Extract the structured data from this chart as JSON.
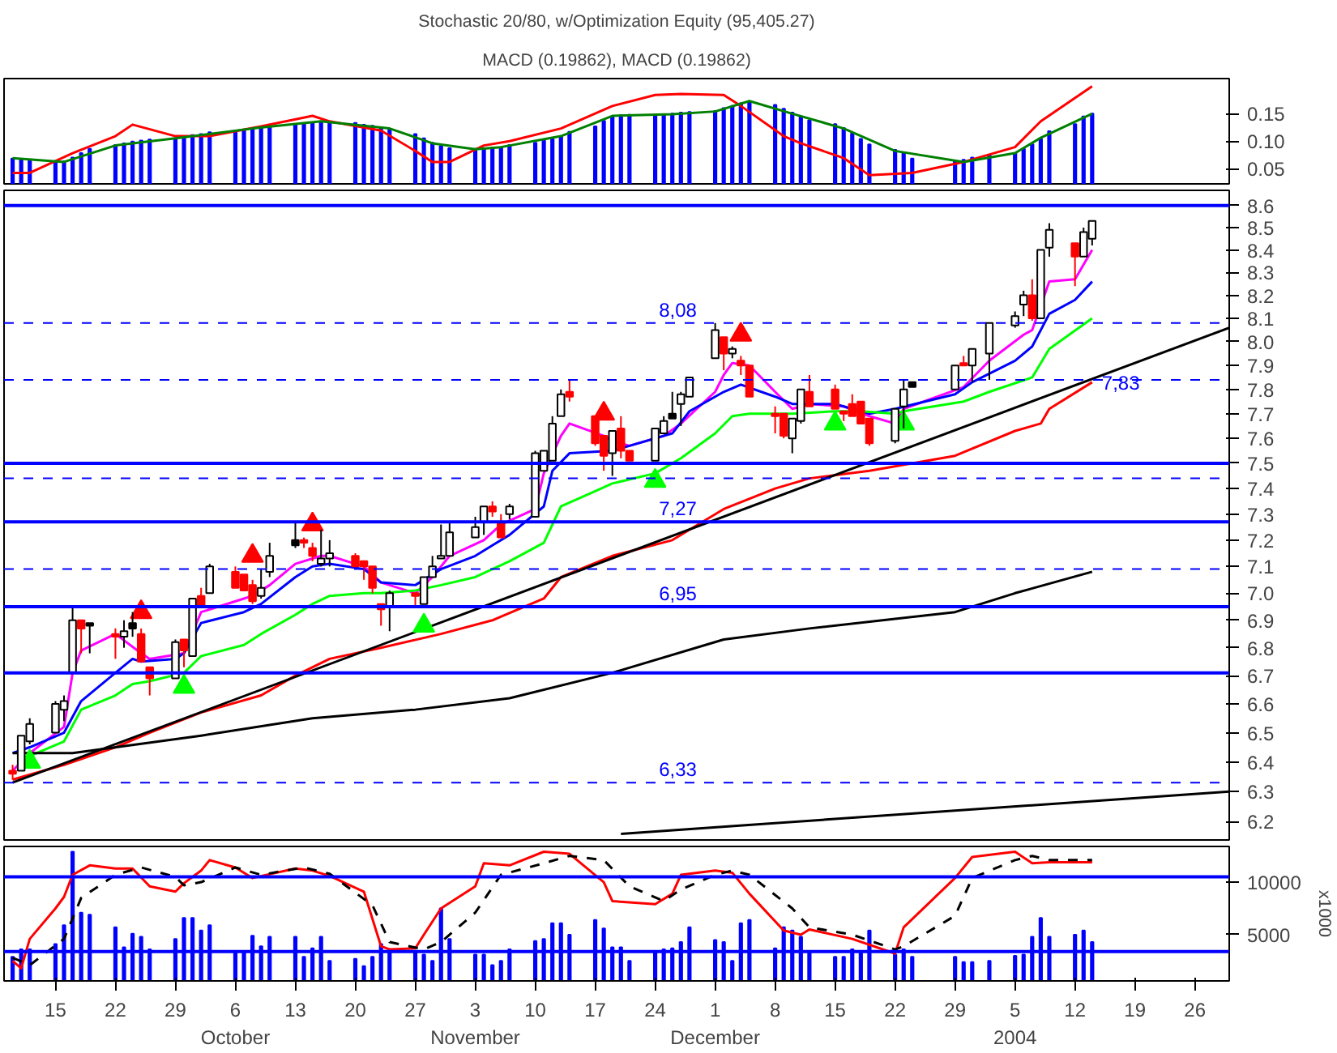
{
  "chart_data": [
    {
      "type": "bar",
      "title": "Stochastic 20/80, w/Optimization Equity (95,405.27)",
      "subtitle": "MACD (0.19862), MACD (0.19862)",
      "xlim": [
        "2003-09-09",
        "2004-01-30"
      ],
      "ylim": [
        0.022,
        0.214
      ],
      "yticks": [
        0.05,
        {
          "value": 0.1,
          "label": "0.10"
        },
        0.15
      ],
      "tick_labels": "y",
      "color": "#0000ff",
      "x": [
        "2003-09-10",
        "2003-09-11",
        "2003-09-12",
        "2003-09-15",
        "2003-09-16",
        "2003-09-17",
        "2003-09-18",
        "2003-09-19",
        "2003-09-22",
        "2003-09-23",
        "2003-09-24",
        "2003-09-25",
        "2003-09-26",
        "2003-09-29",
        "2003-09-30",
        "2003-10-01",
        "2003-10-02",
        "2003-10-03",
        "2003-10-06",
        "2003-10-07",
        "2003-10-08",
        "2003-10-09",
        "2003-10-10",
        "2003-10-13",
        "2003-10-14",
        "2003-10-15",
        "2003-10-16",
        "2003-10-17",
        "2003-10-20",
        "2003-10-21",
        "2003-10-22",
        "2003-10-23",
        "2003-10-24",
        "2003-10-27",
        "2003-10-28",
        "2003-10-29",
        "2003-10-30",
        "2003-10-31",
        "2003-11-03",
        "2003-11-04",
        "2003-11-05",
        "2003-11-06",
        "2003-11-07",
        "2003-11-10",
        "2003-11-11",
        "2003-11-12",
        "2003-11-13",
        "2003-11-14",
        "2003-11-17",
        "2003-11-18",
        "2003-11-19",
        "2003-11-20",
        "2003-11-21",
        "2003-11-24",
        "2003-11-25",
        "2003-11-26",
        "2003-11-27",
        "2003-11-28",
        "2003-12-01",
        "2003-12-02",
        "2003-12-03",
        "2003-12-04",
        "2003-12-05",
        "2003-12-08",
        "2003-12-09",
        "2003-12-10",
        "2003-12-11",
        "2003-12-12",
        "2003-12-15",
        "2003-12-16",
        "2003-12-17",
        "2003-12-18",
        "2003-12-19",
        "2003-12-22",
        "2003-12-23",
        "2003-12-24",
        "2003-12-29",
        "2003-12-30",
        "2003-12-31",
        "2004-01-02",
        "2004-01-05",
        "2004-01-06",
        "2004-01-07",
        "2004-01-08",
        "2004-01-09",
        "2004-01-12",
        "2004-01-13",
        "2004-01-14"
      ],
      "values": [
        0.068,
        0.066,
        0.064,
        0.063,
        0.063,
        0.07,
        0.078,
        0.086,
        0.093,
        0.096,
        0.099,
        0.101,
        0.103,
        0.105,
        0.108,
        0.111,
        0.113,
        0.116,
        0.119,
        0.121,
        0.124,
        0.126,
        0.128,
        0.13,
        0.132,
        0.134,
        0.136,
        0.135,
        0.133,
        0.13,
        0.128,
        0.125,
        0.121,
        0.113,
        0.105,
        0.097,
        0.091,
        0.087,
        0.086,
        0.087,
        0.088,
        0.089,
        0.093,
        0.097,
        0.101,
        0.104,
        0.108,
        0.117,
        0.127,
        0.137,
        0.145,
        0.147,
        0.148,
        0.148,
        0.149,
        0.15,
        0.152,
        0.153,
        0.155,
        0.16,
        0.164,
        0.169,
        0.172,
        0.166,
        0.159,
        0.152,
        0.145,
        0.138,
        0.131,
        0.124,
        0.114,
        0.104,
        0.094,
        0.084,
        0.078,
        0.068,
        0.063,
        0.066,
        0.07,
        0.075,
        0.078,
        0.086,
        0.094,
        0.104,
        0.118,
        0.131,
        0.145,
        0.15
      ],
      "series": [
        {
          "type": "line",
          "color": "#ff0000",
          "x": [
            "2003-09-10",
            "2003-09-12",
            "2003-09-17",
            "2003-09-22",
            "2003-09-24",
            "2003-09-29",
            "2003-10-03",
            "2003-10-09",
            "2003-10-15",
            "2003-10-17",
            "2003-10-23",
            "2003-10-27",
            "2003-10-29",
            "2003-10-31",
            "2003-11-04",
            "2003-11-07",
            "2003-11-13",
            "2003-11-19",
            "2003-11-24",
            "2003-11-27",
            "2003-12-02",
            "2003-12-04",
            "2003-12-09",
            "2003-12-11",
            "2003-12-16",
            "2003-12-19",
            "2003-12-24",
            "2003-12-30",
            "2004-01-05",
            "2004-01-08",
            "2004-01-14"
          ],
          "values": [
            0.042,
            0.042,
            0.078,
            0.109,
            0.13,
            0.109,
            0.109,
            0.127,
            0.146,
            0.136,
            0.119,
            0.082,
            0.062,
            0.062,
            0.092,
            0.1,
            0.123,
            0.164,
            0.184,
            0.186,
            0.184,
            0.164,
            0.109,
            0.096,
            0.069,
            0.038,
            0.042,
            0.062,
            0.089,
            0.136,
            0.2
          ]
        },
        {
          "type": "line",
          "color": "#008000",
          "x": [
            "2003-09-10",
            "2003-09-16",
            "2003-09-22",
            "2003-09-29",
            "2003-10-08",
            "2003-10-16",
            "2003-10-24",
            "2003-10-29",
            "2003-11-03",
            "2003-11-06",
            "2003-11-13",
            "2003-11-19",
            "2003-11-26",
            "2003-12-01",
            "2003-12-05",
            "2003-12-10",
            "2003-12-16",
            "2003-12-22",
            "2003-12-30",
            "2004-01-05",
            "2004-01-08",
            "2004-01-14"
          ],
          "values": [
            0.069,
            0.062,
            0.092,
            0.105,
            0.123,
            0.136,
            0.123,
            0.096,
            0.085,
            0.089,
            0.109,
            0.146,
            0.149,
            0.154,
            0.173,
            0.15,
            0.123,
            0.082,
            0.062,
            0.078,
            0.106,
            0.15
          ]
        }
      ]
    },
    {
      "type": "candlestick",
      "log": "y",
      "xlim": [
        "2003-09-09",
        "2004-01-30"
      ],
      "ylim": [
        6.14,
        8.67
      ],
      "tick_labels": "y",
      "yticks": [
        6.2,
        6.3,
        6.4,
        6.5,
        6.6,
        6.7,
        6.8,
        6.9,
        {
          "value": 7.0,
          "label": "7.0"
        },
        7.1,
        7.2,
        7.3,
        7.4,
        7.5,
        7.6,
        7.7,
        7.8,
        7.9,
        {
          "value": 8.0,
          "label": "8.0"
        },
        8.1,
        8.2,
        8.3,
        8.4,
        8.5,
        8.6
      ],
      "x": [
        "2003-09-10",
        "2003-09-11",
        "2003-09-12",
        "2003-09-15",
        "2003-09-16",
        "2003-09-17",
        "2003-09-18",
        "2003-09-19",
        "2003-09-22",
        "2003-09-23",
        "2003-09-24",
        "2003-09-25",
        "2003-09-26",
        "2003-09-29",
        "2003-09-30",
        "2003-10-01",
        "2003-10-02",
        "2003-10-03",
        "2003-10-06",
        "2003-10-07",
        "2003-10-08",
        "2003-10-09",
        "2003-10-10",
        "2003-10-13",
        "2003-10-14",
        "2003-10-15",
        "2003-10-16",
        "2003-10-17",
        "2003-10-20",
        "2003-10-21",
        "2003-10-22",
        "2003-10-23",
        "2003-10-24",
        "2003-10-27",
        "2003-10-28",
        "2003-10-29",
        "2003-10-30",
        "2003-10-31",
        "2003-11-03",
        "2003-11-04",
        "2003-11-05",
        "2003-11-06",
        "2003-11-07",
        "2003-11-10",
        "2003-11-11",
        "2003-11-12",
        "2003-11-13",
        "2003-11-14",
        "2003-11-17",
        "2003-11-18",
        "2003-11-19",
        "2003-11-20",
        "2003-11-21",
        "2003-11-24",
        "2003-11-25",
        "2003-11-26",
        "2003-11-27",
        "2003-11-28",
        "2003-12-01",
        "2003-12-02",
        "2003-12-03",
        "2003-12-04",
        "2003-12-05",
        "2003-12-08",
        "2003-12-09",
        "2003-12-10",
        "2003-12-11",
        "2003-12-12",
        "2003-12-15",
        "2003-12-16",
        "2003-12-17",
        "2003-12-18",
        "2003-12-19",
        "2003-12-22",
        "2003-12-23",
        "2003-12-24",
        "2003-12-29",
        "2003-12-30",
        "2003-12-31",
        "2004-01-02",
        "2004-01-05",
        "2004-01-06",
        "2004-01-07",
        "2004-01-08",
        "2004-01-09",
        "2004-01-12",
        "2004-01-13",
        "2004-01-14"
      ],
      "ohlc": [
        [
          6.37,
          6.39,
          6.34,
          6.36
        ],
        [
          6.37,
          6.49,
          6.37,
          6.49
        ],
        [
          6.47,
          6.55,
          6.46,
          6.53
        ],
        [
          6.5,
          6.61,
          6.5,
          6.6
        ],
        [
          6.58,
          6.63,
          6.54,
          6.61
        ],
        [
          6.71,
          6.95,
          6.71,
          6.9
        ],
        [
          6.9,
          6.9,
          6.78,
          6.87
        ],
        [
          6.89,
          6.89,
          6.78,
          6.88
        ],
        [
          6.85,
          6.87,
          6.76,
          6.84
        ],
        [
          6.84,
          6.9,
          6.8,
          6.86
        ],
        [
          6.89,
          6.93,
          6.84,
          6.87
        ],
        [
          6.85,
          6.87,
          6.75,
          6.75
        ],
        [
          6.73,
          6.73,
          6.63,
          6.69
        ],
        [
          6.69,
          6.83,
          6.69,
          6.82
        ],
        [
          6.83,
          6.83,
          6.73,
          6.79
        ],
        [
          6.77,
          6.98,
          6.77,
          6.98
        ],
        [
          6.99,
          7.02,
          6.95,
          6.95
        ],
        [
          7.0,
          7.11,
          7.0,
          7.1
        ],
        [
          7.08,
          7.1,
          7.02,
          7.02
        ],
        [
          7.07,
          7.07,
          7.01,
          7.01
        ],
        [
          7.03,
          7.05,
          6.96,
          6.97
        ],
        [
          6.99,
          7.09,
          6.98,
          7.02
        ],
        [
          7.08,
          7.19,
          7.06,
          7.14
        ],
        [
          7.2,
          7.27,
          7.17,
          7.18
        ],
        [
          7.2,
          7.21,
          7.17,
          7.19
        ],
        [
          7.17,
          7.19,
          7.12,
          7.14
        ],
        [
          7.11,
          7.24,
          7.1,
          7.13
        ],
        [
          7.13,
          7.2,
          7.1,
          7.15
        ],
        [
          7.14,
          7.15,
          7.1,
          7.1
        ],
        [
          7.12,
          7.12,
          7.05,
          7.1
        ],
        [
          7.1,
          7.1,
          7.0,
          7.02
        ],
        [
          6.96,
          6.96,
          6.88,
          6.94
        ],
        [
          6.95,
          7.01,
          6.86,
          7.0
        ],
        [
          7.0,
          7.0,
          6.95,
          6.99
        ],
        [
          6.96,
          7.06,
          6.96,
          7.06
        ],
        [
          7.06,
          7.14,
          7.06,
          7.1
        ],
        [
          7.13,
          7.26,
          7.13,
          7.14
        ],
        [
          7.14,
          7.27,
          7.14,
          7.23
        ],
        [
          7.21,
          7.29,
          7.21,
          7.25
        ],
        [
          7.27,
          7.33,
          7.22,
          7.33
        ],
        [
          7.33,
          7.35,
          7.29,
          7.31
        ],
        [
          7.27,
          7.3,
          7.21,
          7.21
        ],
        [
          7.3,
          7.34,
          7.28,
          7.33
        ],
        [
          7.29,
          7.55,
          7.29,
          7.54
        ],
        [
          7.47,
          7.55,
          7.47,
          7.55
        ],
        [
          7.51,
          7.69,
          7.51,
          7.66
        ],
        [
          7.69,
          7.8,
          7.69,
          7.78
        ],
        [
          7.79,
          7.84,
          7.75,
          7.77
        ],
        [
          7.69,
          7.69,
          7.57,
          7.58
        ],
        [
          7.61,
          7.61,
          7.47,
          7.53
        ],
        [
          7.54,
          7.63,
          7.45,
          7.63
        ],
        [
          7.64,
          7.69,
          7.52,
          7.55
        ],
        [
          7.55,
          7.55,
          7.51,
          7.51
        ],
        [
          7.51,
          7.64,
          7.51,
          7.64
        ],
        [
          7.62,
          7.69,
          7.62,
          7.67
        ],
        [
          7.7,
          7.79,
          7.68,
          7.68
        ],
        [
          7.74,
          7.79,
          7.65,
          7.78
        ],
        [
          7.77,
          7.85,
          7.77,
          7.85
        ],
        [
          7.93,
          8.08,
          7.93,
          8.05
        ],
        [
          8.02,
          8.02,
          7.88,
          7.95
        ],
        [
          7.95,
          7.98,
          7.93,
          7.97
        ],
        [
          7.92,
          7.94,
          7.86,
          7.9
        ],
        [
          7.9,
          7.9,
          7.77,
          7.77
        ],
        [
          7.7,
          7.73,
          7.62,
          7.69
        ],
        [
          7.7,
          7.7,
          7.6,
          7.61
        ],
        [
          7.6,
          7.68,
          7.54,
          7.68
        ],
        [
          7.67,
          7.8,
          7.66,
          7.8
        ],
        [
          7.79,
          7.86,
          7.73,
          7.73
        ],
        [
          7.8,
          7.82,
          7.72,
          7.72
        ],
        [
          7.71,
          7.71,
          7.67,
          7.7
        ],
        [
          7.74,
          7.78,
          7.69,
          7.69
        ],
        [
          7.75,
          7.75,
          7.66,
          7.66
        ],
        [
          7.68,
          7.68,
          7.57,
          7.58
        ],
        [
          7.59,
          7.72,
          7.58,
          7.72
        ],
        [
          7.73,
          7.84,
          7.64,
          7.8
        ],
        [
          7.83,
          7.83,
          7.81,
          7.81
        ],
        [
          7.8,
          7.9,
          7.8,
          7.9
        ],
        [
          7.91,
          7.94,
          7.9,
          7.9
        ],
        [
          7.9,
          7.97,
          7.83,
          7.97
        ],
        [
          7.95,
          8.08,
          7.84,
          8.08
        ],
        [
          8.07,
          8.13,
          8.06,
          8.11
        ],
        [
          8.16,
          8.22,
          8.11,
          8.2
        ],
        [
          8.2,
          8.27,
          8.09,
          8.1
        ],
        [
          8.1,
          8.4,
          8.1,
          8.4
        ],
        [
          8.41,
          8.52,
          8.37,
          8.49
        ],
        [
          8.43,
          8.43,
          8.24,
          8.37
        ],
        [
          8.37,
          8.5,
          8.37,
          8.48
        ],
        [
          8.45,
          8.53,
          8.42,
          8.53
        ]
      ],
      "colors": [
        "#ff0000",
        "#ffffff",
        "#ffffff",
        "#ffffff",
        "#ffffff",
        "#ffffff",
        "#ff0000",
        "#000000",
        "#ff0000",
        "#ffffff",
        "#000000",
        "#ff0000",
        "#ff0000",
        "#ffffff",
        "#ff0000",
        "#ffffff",
        "#ff0000",
        "#ffffff",
        "#ff0000",
        "#ff0000",
        "#ff0000",
        "#ffffff",
        "#ffffff",
        "#000000",
        "#ff0000",
        "#ff0000",
        "#ffffff",
        "#ffffff",
        "#ff0000",
        "#ff0000",
        "#ff0000",
        "#ff0000",
        "#ffffff",
        "#ff0000",
        "#ffffff",
        "#ffffff",
        "#ffffff",
        "#ffffff",
        "#ffffff",
        "#ffffff",
        "#ff0000",
        "#ff0000",
        "#ffffff",
        "#ffffff",
        "#ffffff",
        "#ffffff",
        "#ffffff",
        "#ff0000",
        "#ff0000",
        "#ff0000",
        "#ffffff",
        "#ff0000",
        "#ff0000",
        "#ffffff",
        "#ffffff",
        "#000000",
        "#ffffff",
        "#ffffff",
        "#ffffff",
        "#ff0000",
        "#ffffff",
        "#ff0000",
        "#ff0000",
        "#ff0000",
        "#ff0000",
        "#ffffff",
        "#ffffff",
        "#ff0000",
        "#ff0000",
        "#ff0000",
        "#ff0000",
        "#ff0000",
        "#ff0000",
        "#ffffff",
        "#ffffff",
        "#000000",
        "#ffffff",
        "#ff0000",
        "#ffffff",
        "#ffffff",
        "#ffffff",
        "#ffffff",
        "#ff0000",
        "#ffffff",
        "#ffffff",
        "#ff0000",
        "#ffffff",
        "#ffffff"
      ],
      "series": [
        {
          "type": "line",
          "color": "#ff00ff",
          "x": [
            "2003-09-10",
            "2003-09-12",
            "2003-09-16",
            "2003-09-17",
            "2003-09-18",
            "2003-09-22",
            "2003-09-25",
            "2003-09-26",
            "2003-09-30",
            "2003-10-01",
            "2003-10-02",
            "2003-10-07",
            "2003-10-08",
            "2003-10-10",
            "2003-10-13",
            "2003-10-16",
            "2003-10-17",
            "2003-10-21",
            "2003-10-23",
            "2003-10-27",
            "2003-10-29",
            "2003-10-31",
            "2003-11-04",
            "2003-11-06",
            "2003-11-10",
            "2003-11-11",
            "2003-11-13",
            "2003-11-14",
            "2003-11-18",
            "2003-11-19",
            "2003-11-21",
            "2003-11-25",
            "2003-11-27",
            "2003-12-01",
            "2003-12-02",
            "2003-12-03",
            "2003-12-05",
            "2003-12-08",
            "2003-12-10",
            "2003-12-12",
            "2003-12-16",
            "2003-12-19",
            "2003-12-22",
            "2003-12-23",
            "2003-12-30",
            "2004-01-02",
            "2004-01-06",
            "2004-01-07",
            "2004-01-09",
            "2004-01-12",
            "2004-01-14"
          ],
          "values": [
            6.37,
            6.43,
            6.52,
            6.71,
            6.79,
            6.85,
            6.78,
            6.76,
            6.78,
            null,
            6.93,
            6.98,
            6.99,
            7.03,
            7.11,
            7.14,
            7.14,
            7.1,
            7.04,
            7.0,
            7.06,
            7.14,
            7.2,
            7.26,
            7.32,
            7.46,
            7.61,
            7.66,
            7.61,
            7.59,
            7.57,
            7.61,
            7.66,
            7.79,
            7.86,
            7.91,
            7.9,
            7.79,
            7.72,
            7.74,
            7.73,
            7.69,
            7.66,
            7.72,
            7.81,
            7.92,
            8.03,
            8.05,
            8.26,
            8.27,
            8.4
          ]
        },
        {
          "type": "line",
          "color": "#0000ff",
          "x": [
            "2003-09-10",
            "2003-09-12",
            "2003-09-16",
            "2003-09-18",
            "2003-09-22",
            "2003-09-24",
            "2003-09-25",
            "2003-09-29",
            "2003-09-30",
            "2003-10-02",
            "2003-10-07",
            "2003-10-09",
            "2003-10-13",
            "2003-10-15",
            "2003-10-17",
            "2003-10-21",
            "2003-10-23",
            "2003-10-27",
            "2003-10-30",
            "2003-11-03",
            "2003-11-05",
            "2003-11-07",
            "2003-11-11",
            "2003-11-12",
            "2003-11-14",
            "2003-11-19",
            "2003-11-21",
            "2003-11-26",
            "2003-11-28",
            "2003-12-02",
            "2003-12-04",
            "2003-12-08",
            "2003-12-10",
            "2003-12-15",
            "2003-12-19",
            "2003-12-22",
            "2003-12-29",
            "2003-12-31",
            "2004-01-05",
            "2004-01-07",
            "2004-01-09",
            "2004-01-12",
            "2004-01-14"
          ],
          "values": [
            6.43,
            6.45,
            6.5,
            6.61,
            6.71,
            6.76,
            6.75,
            6.76,
            6.78,
            6.89,
            6.93,
            6.96,
            7.06,
            7.1,
            7.11,
            7.09,
            7.04,
            7.03,
            7.09,
            7.14,
            7.18,
            7.22,
            7.33,
            7.47,
            7.54,
            7.55,
            7.57,
            7.62,
            7.71,
            7.79,
            7.82,
            7.77,
            7.74,
            7.74,
            7.7,
            7.72,
            7.78,
            7.83,
            7.92,
            7.98,
            8.12,
            8.18,
            8.26
          ]
        },
        {
          "type": "line",
          "color": "#00ff00",
          "x": [
            "2003-09-12",
            "2003-09-16",
            "2003-09-18",
            "2003-09-22",
            "2003-09-24",
            "2003-09-26",
            "2003-09-30",
            "2003-10-02",
            "2003-10-07",
            "2003-10-09",
            "2003-10-13",
            "2003-10-15",
            "2003-10-17",
            "2003-10-21",
            "2003-10-23",
            "2003-10-27",
            "2003-10-30",
            "2003-11-03",
            "2003-11-05",
            "2003-11-07",
            "2003-11-11",
            "2003-11-13",
            "2003-11-17",
            "2003-11-19",
            "2003-11-24",
            "2003-11-27",
            "2003-12-01",
            "2003-12-03",
            "2003-12-05",
            "2003-12-10",
            "2003-12-15",
            "2003-12-18",
            "2003-12-22",
            "2003-12-23",
            "2003-12-30",
            "2004-01-02",
            "2004-01-07",
            "2004-01-09",
            "2004-01-14"
          ],
          "values": [
            6.42,
            6.47,
            6.58,
            6.63,
            6.67,
            6.68,
            6.71,
            6.77,
            6.81,
            6.85,
            6.92,
            6.96,
            6.99,
            7.0,
            7.0,
            7.01,
            7.03,
            7.06,
            7.09,
            7.12,
            7.19,
            7.33,
            7.39,
            7.42,
            7.46,
            7.52,
            7.62,
            7.69,
            7.7,
            7.7,
            7.71,
            7.71,
            7.7,
            7.71,
            7.75,
            7.79,
            7.85,
            7.97,
            8.1
          ]
        },
        {
          "type": "line",
          "color": "#ff0000",
          "x": [
            "2003-09-10",
            "2003-09-16",
            "2003-09-22",
            "2003-09-26",
            "2003-10-02",
            "2003-10-09",
            "2003-10-13",
            "2003-10-17",
            "2003-10-23",
            "2003-10-30",
            "2003-11-05",
            "2003-11-11",
            "2003-11-13",
            "2003-11-19",
            "2003-11-26",
            "2003-12-02",
            "2003-12-08",
            "2003-12-12",
            "2003-12-19",
            "2003-12-29",
            "2004-01-05",
            "2004-01-08",
            "2004-01-09",
            "2004-01-14"
          ],
          "values": [
            6.34,
            6.39,
            6.45,
            6.5,
            6.57,
            6.63,
            6.7,
            6.76,
            6.8,
            6.85,
            6.9,
            6.98,
            7.06,
            7.14,
            7.2,
            7.32,
            7.4,
            7.44,
            7.47,
            7.53,
            7.63,
            7.66,
            7.72,
            7.83
          ]
        },
        {
          "type": "line",
          "color": "#000000",
          "x": [
            "2003-09-10",
            "2003-09-17",
            "2003-10-02",
            "2003-10-15",
            "2003-10-27",
            "2003-11-07",
            "2003-11-19",
            "2003-12-02",
            "2003-12-12",
            "2003-12-29",
            "2004-01-05",
            "2004-01-14"
          ],
          "values": [
            6.43,
            6.43,
            6.49,
            6.55,
            6.58,
            6.62,
            6.71,
            6.83,
            6.87,
            6.93,
            7.0,
            7.08
          ]
        },
        {
          "type": "line",
          "color": "#000000",
          "x": [
            "2003-09-10",
            "2004-01-30"
          ],
          "values": [
            6.33,
            8.06
          ]
        },
        {
          "type": "line",
          "color": "#000000",
          "x": [
            "2003-11-20",
            "2004-01-30"
          ],
          "values": [
            6.16,
            6.3
          ]
        },
        {
          "type": "scatter",
          "marker": "triangle",
          "color": "#00ff00",
          "x": [
            "2003-09-12",
            "2003-09-30",
            "2003-10-28",
            "2003-11-24",
            "2003-12-15",
            "2003-12-23"
          ],
          "values": [
            6.4,
            6.66,
            6.88,
            7.43,
            7.66,
            7.66
          ]
        },
        {
          "type": "scatter",
          "marker": "triangle",
          "color": "#ff0000",
          "x": [
            "2003-09-25",
            "2003-10-08",
            "2003-10-15",
            "2003-11-18",
            "2003-12-04"
          ],
          "values": [
            6.93,
            7.14,
            7.26,
            7.7,
            8.03
          ]
        }
      ],
      "ref_lines": [
        {
          "axis": "y",
          "value": 8.6,
          "color": "#0000ff"
        },
        {
          "axis": "y",
          "value": 7.27,
          "color": "#0000ff",
          "label": "7,27"
        },
        {
          "axis": "y",
          "value": 6.95,
          "color": "#0000ff",
          "label": "6,95"
        },
        {
          "axis": "y",
          "value": 6.71,
          "color": "#0000ff"
        },
        {
          "axis": "y",
          "value": 7.5,
          "color": "#0000ff"
        },
        {
          "axis": "y",
          "value": 8.08,
          "color": "#0000ff",
          "line_style": "dashed",
          "label": "8,08"
        },
        {
          "axis": "y",
          "value": 7.84,
          "color": "#0000ff",
          "line_style": "dashed"
        },
        {
          "axis": "y",
          "value": 7.44,
          "color": "#0000ff",
          "line_style": "dashed"
        },
        {
          "axis": "y",
          "value": 7.09,
          "color": "#0000ff",
          "line_style": "dashed"
        },
        {
          "axis": "y",
          "value": 6.33,
          "color": "#0000ff",
          "line_style": "dashed",
          "label": "6,33"
        }
      ],
      "annotations": [
        {
          "text": "7,83",
          "x": "2004-01-14",
          "y": 7.83
        }
      ]
    },
    {
      "type": "bar",
      "ylabel": "x1000",
      "color": "#0000ff",
      "xlim": [
        "2003-09-09",
        "2004-01-30"
      ],
      "ylim": [
        600,
        13400
      ],
      "yticks": [
        5000,
        10000
      ],
      "xticks": [
        {
          "value": "2003-09-15",
          "label": "15"
        },
        {
          "value": "2003-09-22",
          "label": "22"
        },
        {
          "value": "2003-09-29",
          "label": "29"
        },
        {
          "value": "2003-10-06",
          "label": "6\nOctober"
        },
        {
          "value": "2003-10-13",
          "label": "13"
        },
        {
          "value": "2003-10-20",
          "label": "20"
        },
        {
          "value": "2003-10-27",
          "label": "27"
        },
        {
          "value": "2003-11-03",
          "label": "3\nNovember"
        },
        {
          "value": "2003-11-10",
          "label": "10"
        },
        {
          "value": "2003-11-17",
          "label": "17"
        },
        {
          "value": "2003-11-24",
          "label": "24"
        },
        {
          "value": "2003-12-01",
          "label": "1\nDecember"
        },
        {
          "value": "2003-12-08",
          "label": "8"
        },
        {
          "value": "2003-12-15",
          "label": "15"
        },
        {
          "value": "2003-12-22",
          "label": "22"
        },
        {
          "value": "2003-12-29",
          "label": "29"
        },
        {
          "value": "2004-01-05",
          "label": "5\n2004"
        },
        {
          "value": "2004-01-12",
          "label": "12"
        },
        {
          "value": "2004-01-19",
          "label": "19"
        },
        {
          "value": "2004-01-26",
          "label": "26"
        }
      ],
      "x": [
        "2003-09-10",
        "2003-09-11",
        "2003-09-12",
        "2003-09-15",
        "2003-09-16",
        "2003-09-17",
        "2003-09-18",
        "2003-09-19",
        "2003-09-22",
        "2003-09-23",
        "2003-09-24",
        "2003-09-25",
        "2003-09-26",
        "2003-09-29",
        "2003-09-30",
        "2003-10-01",
        "2003-10-02",
        "2003-10-03",
        "2003-10-06",
        "2003-10-07",
        "2003-10-08",
        "2003-10-09",
        "2003-10-10",
        "2003-10-13",
        "2003-10-14",
        "2003-10-15",
        "2003-10-16",
        "2003-10-17",
        "2003-10-20",
        "2003-10-21",
        "2003-10-22",
        "2003-10-23",
        "2003-10-24",
        "2003-10-27",
        "2003-10-28",
        "2003-10-29",
        "2003-10-30",
        "2003-10-31",
        "2003-11-03",
        "2003-11-04",
        "2003-11-05",
        "2003-11-06",
        "2003-11-07",
        "2003-11-10",
        "2003-11-11",
        "2003-11-12",
        "2003-11-13",
        "2003-11-14",
        "2003-11-17",
        "2003-11-18",
        "2003-11-19",
        "2003-11-20",
        "2003-11-21",
        "2003-11-24",
        "2003-11-25",
        "2003-11-26",
        "2003-11-27",
        "2003-11-28",
        "2003-12-01",
        "2003-12-02",
        "2003-12-03",
        "2003-12-04",
        "2003-12-05",
        "2003-12-08",
        "2003-12-09",
        "2003-12-10",
        "2003-12-11",
        "2003-12-12",
        "2003-12-15",
        "2003-12-16",
        "2003-12-17",
        "2003-12-18",
        "2003-12-19",
        "2003-12-22",
        "2003-12-23",
        "2003-12-24",
        "2003-12-29",
        "2003-12-30",
        "2003-12-31",
        "2004-01-02",
        "2004-01-05",
        "2004-01-06",
        "2004-01-07",
        "2004-01-08",
        "2004-01-09",
        "2004-01-12",
        "2004-01-13",
        "2004-01-14"
      ],
      "values": [
        2900,
        3600,
        3600,
        4100,
        5900,
        12900,
        7100,
        6900,
        5700,
        3800,
        5100,
        4800,
        3600,
        4600,
        6600,
        6600,
        5400,
        5900,
        3400,
        3400,
        4900,
        3900,
        4800,
        4800,
        2900,
        3700,
        4800,
        2500,
        2700,
        2000,
        2900,
        4100,
        3400,
        3400,
        3100,
        2500,
        7500,
        4600,
        3100,
        3100,
        2100,
        2500,
        3600,
        4400,
        4600,
        6100,
        6100,
        5000,
        6400,
        5600,
        3800,
        3800,
        2500,
        3400,
        3600,
        3700,
        4300,
        5700,
        4500,
        4300,
        2500,
        6100,
        6400,
        3700,
        5700,
        5400,
        4800,
        3400,
        2900,
        2900,
        3600,
        3400,
        5400,
        3100,
        3600,
        2900,
        2900,
        2400,
        2400,
        2500,
        3000,
        3100,
        4800,
        6600,
        4800,
        5000,
        5400,
        4300
      ],
      "series": [
        {
          "type": "line",
          "color": "#ff0000",
          "x": [
            "2003-09-10",
            "2003-09-11",
            "2003-09-12",
            "2003-09-15",
            "2003-09-16",
            "2003-09-17",
            "2003-09-19",
            "2003-09-22",
            "2003-09-24",
            "2003-09-26",
            "2003-09-29",
            "2003-09-30",
            "2003-10-02",
            "2003-10-03",
            "2003-10-06",
            "2003-10-08",
            "2003-10-13",
            "2003-10-15",
            "2003-10-17",
            "2003-10-21",
            "2003-10-23",
            "2003-10-24",
            "2003-10-27",
            "2003-10-28",
            "2003-10-30",
            "2003-11-03",
            "2003-11-04",
            "2003-11-07",
            "2003-11-11",
            "2003-11-14",
            "2003-11-18",
            "2003-11-19",
            "2003-11-24",
            "2003-11-26",
            "2003-11-27",
            "2003-12-01",
            "2003-12-03",
            "2003-12-05",
            "2003-12-09",
            "2003-12-11",
            "2003-12-12",
            "2003-12-17",
            "2003-12-22",
            "2003-12-23",
            "2003-12-29",
            "2003-12-31",
            "2004-01-05",
            "2004-01-07",
            "2004-01-09",
            "2004-01-14"
          ],
          "values": [
            2500,
            1800,
            4600,
            7500,
            8600,
            10700,
            11600,
            11300,
            11300,
            9600,
            9100,
            9900,
            11100,
            12100,
            11400,
            10400,
            11300,
            11100,
            10600,
            9100,
            3900,
            3600,
            3700,
            5000,
            7500,
            9600,
            11800,
            11600,
            12900,
            12700,
            10000,
            8200,
            7900,
            8900,
            10700,
            11100,
            10900,
            8900,
            5400,
            5000,
            5500,
            4600,
            3200,
            5700,
            10400,
            12400,
            12900,
            11800,
            11900,
            11900
          ]
        },
        {
          "type": "line",
          "color": "#000000",
          "line_style": "dashed",
          "x": [
            "2003-09-10",
            "2003-09-12",
            "2003-09-16",
            "2003-09-18",
            "2003-09-22",
            "2003-09-25",
            "2003-09-29",
            "2003-09-30",
            "2003-10-02",
            "2003-10-06",
            "2003-10-09",
            "2003-10-14",
            "2003-10-17",
            "2003-10-22",
            "2003-10-24",
            "2003-10-28",
            "2003-10-30",
            "2003-11-03",
            "2003-11-06",
            "2003-11-11",
            "2003-11-14",
            "2003-11-18",
            "2003-11-21",
            "2003-11-25",
            "2003-11-27",
            "2003-12-01",
            "2003-12-03",
            "2003-12-05",
            "2003-12-10",
            "2003-12-12",
            "2003-12-17",
            "2003-12-22",
            "2003-12-23",
            "2003-12-29",
            "2003-12-31",
            "2004-01-05",
            "2004-01-07",
            "2004-01-09",
            "2004-01-14"
          ],
          "values": [
            2800,
            2100,
            4600,
            8500,
            10700,
            11400,
            10500,
            9700,
            10000,
            11400,
            10700,
            11400,
            10800,
            7800,
            4300,
            3600,
            4300,
            7100,
            10700,
            11800,
            12500,
            12100,
            9600,
            8200,
            9300,
            10700,
            11100,
            10700,
            7500,
            5700,
            5000,
            3600,
            3900,
            6800,
            10400,
            12100,
            12500,
            12100,
            12100
          ]
        }
      ],
      "ref_lines": [
        {
          "axis": "y",
          "value": 10500,
          "color": "#0000ff"
        },
        {
          "axis": "y",
          "value": 3400,
          "color": "#0000ff"
        }
      ]
    }
  ]
}
